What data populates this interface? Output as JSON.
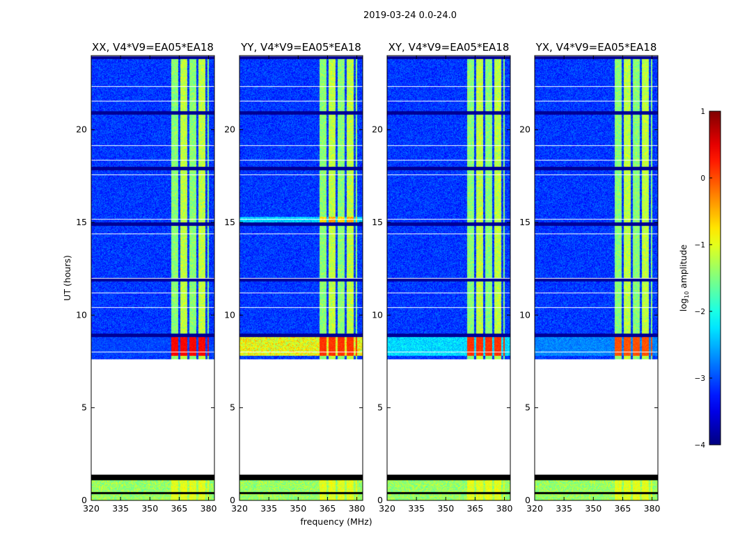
{
  "chart_data": {
    "type": "heatmap",
    "title": "2019-03-24 0.0-24.0",
    "xlabel": "frequency (MHz)",
    "ylabel": "UT (hours)",
    "xlim": [
      320,
      383
    ],
    "ylim": [
      0,
      24
    ],
    "x_ticks": [
      320,
      335,
      350,
      365,
      380
    ],
    "y_ticks": [
      0,
      5,
      10,
      15,
      20
    ],
    "colorbar": {
      "label": "log10 amplitude",
      "label_main": "log",
      "label_sub": "10",
      "label_rest": " amplitude",
      "range": [
        -4,
        1
      ],
      "ticks": [
        1,
        0,
        -1,
        -2,
        -3,
        -4
      ],
      "tick_labels": [
        "1",
        "0",
        "−1",
        "−2",
        "−3",
        "−4"
      ],
      "colormap": "jet"
    },
    "panels": [
      {
        "pol": "XX",
        "title": "XX, V4*V9=EA05*EA18",
        "hot_band_level": 0.9,
        "broadband_level": 0.2
      },
      {
        "pol": "YY",
        "title": "YY, V4*V9=EA05*EA18",
        "hot_band_level": 0.85,
        "broadband_level": 0.72
      },
      {
        "pol": "XY",
        "title": "XY, V4*V9=EA05*EA18",
        "hot_band_level": 0.85,
        "broadband_level": 0.4
      },
      {
        "pol": "YX",
        "title": "YX, V4*V9=EA05*EA18",
        "hot_band_level": 0.82,
        "broadband_level": 0.3
      }
    ],
    "rfi_band_MHz": [
      360,
      380
    ],
    "no_data_UT": [
      1.4,
      7.6
    ],
    "flagged_UT_black": [
      [
        1.1,
        1.4
      ],
      [
        0.35,
        0.45
      ]
    ],
    "bright_event_UT": [
      7.8,
      8.8
    ]
  }
}
